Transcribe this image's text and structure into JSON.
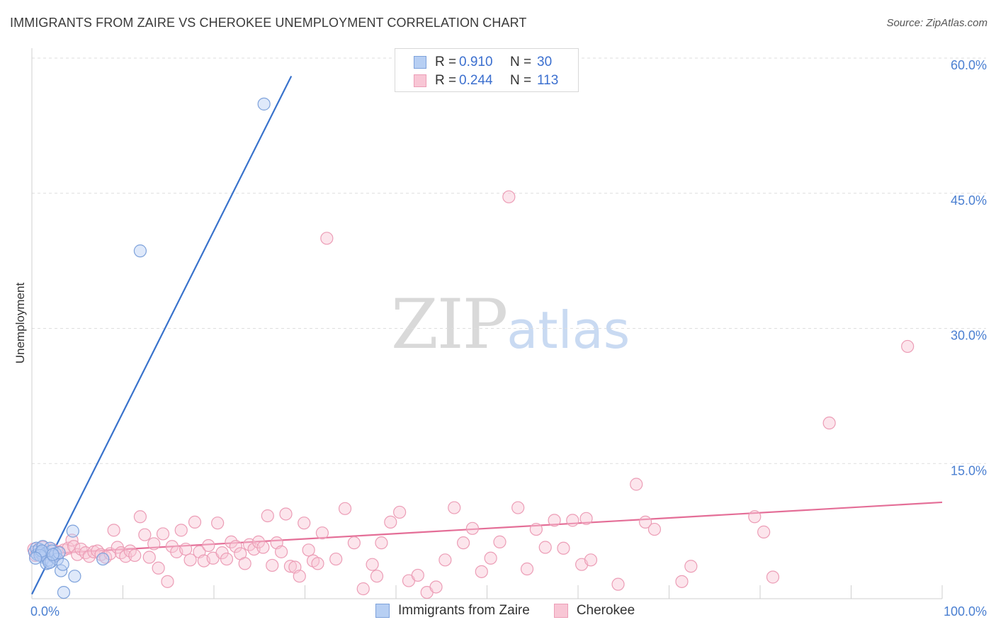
{
  "title": "IMMIGRANTS FROM ZAIRE VS CHEROKEE UNEMPLOYMENT CORRELATION CHART",
  "source": "Source: ZipAtlas.com",
  "watermark": {
    "zip": "ZIP",
    "atlas": "atlas"
  },
  "colors": {
    "blue_fill": "#b7cff3",
    "blue_stroke": "#7ea2db",
    "blue_line": "#3872cc",
    "pink_fill": "#f8c6d5",
    "pink_stroke": "#ec9db6",
    "pink_line": "#e46e97",
    "grid": "#dedede",
    "tick_text": "#4a7fd1"
  },
  "legend": {
    "rows": [
      {
        "r_label": "R =",
        "r_value": "0.910",
        "n_label": "N =",
        "n_value": "30"
      },
      {
        "r_label": "R =",
        "r_value": "0.244",
        "n_label": "N =",
        "n_value": "113"
      }
    ]
  },
  "chart_data": {
    "type": "scatter",
    "title": "IMMIGRANTS FROM ZAIRE VS CHEROKEE UNEMPLOYMENT CORRELATION CHART",
    "xlabel": "",
    "ylabel": "Unemployment",
    "xlim": [
      0,
      100
    ],
    "ylim": [
      0,
      60
    ],
    "x_tick_labels": [
      "0.0%",
      "100.0%"
    ],
    "y_ticks": [
      15,
      30,
      45,
      60
    ],
    "y_tick_labels": [
      "15.0%",
      "30.0%",
      "45.0%",
      "60.0%"
    ],
    "grid": true,
    "legend_position": "bottom",
    "series": [
      {
        "name": "Immigrants from Zaire",
        "r": 0.91,
        "n": 30,
        "trend": {
          "x": [
            0,
            28.5
          ],
          "y": [
            0.5,
            58.0
          ]
        },
        "points": [
          [
            0.3,
            5.2
          ],
          [
            0.5,
            5.6
          ],
          [
            0.6,
            4.9
          ],
          [
            0.8,
            5.5
          ],
          [
            1.0,
            5.1
          ],
          [
            1.2,
            5.8
          ],
          [
            1.3,
            4.6
          ],
          [
            1.5,
            5.0
          ],
          [
            1.6,
            3.9
          ],
          [
            1.8,
            4.3
          ],
          [
            2.0,
            5.6
          ],
          [
            2.1,
            4.1
          ],
          [
            2.2,
            5.3
          ],
          [
            2.4,
            4.7
          ],
          [
            2.6,
            5.0
          ],
          [
            2.8,
            4.4
          ],
          [
            3.0,
            5.1
          ],
          [
            3.2,
            3.1
          ],
          [
            3.4,
            3.8
          ],
          [
            3.5,
            0.7
          ],
          [
            4.5,
            7.5
          ],
          [
            4.7,
            2.5
          ],
          [
            7.8,
            4.4
          ],
          [
            11.9,
            38.6
          ],
          [
            25.5,
            54.9
          ],
          [
            0.9,
            4.8
          ],
          [
            1.1,
            5.3
          ],
          [
            1.9,
            4.0
          ],
          [
            2.3,
            4.9
          ],
          [
            0.4,
            4.5
          ]
        ]
      },
      {
        "name": "Cherokee",
        "r": 0.244,
        "n": 113,
        "trend": {
          "x": [
            0,
            100
          ],
          "y": [
            4.9,
            10.7
          ]
        },
        "points": [
          [
            0.2,
            5.5
          ],
          [
            0.4,
            4.8
          ],
          [
            0.6,
            5.3
          ],
          [
            0.9,
            5.0
          ],
          [
            1.2,
            5.7
          ],
          [
            1.5,
            4.9
          ],
          [
            1.8,
            5.2
          ],
          [
            2.2,
            5.5
          ],
          [
            2.6,
            4.8
          ],
          [
            3.0,
            5.2
          ],
          [
            3.5,
            5.4
          ],
          [
            4.0,
            5.6
          ],
          [
            4.4,
            6.5
          ],
          [
            4.6,
            5.8
          ],
          [
            5.0,
            4.9
          ],
          [
            5.4,
            5.5
          ],
          [
            5.9,
            5.1
          ],
          [
            6.3,
            4.7
          ],
          [
            6.8,
            5.2
          ],
          [
            7.2,
            5.3
          ],
          [
            7.6,
            4.9
          ],
          [
            8.1,
            4.6
          ],
          [
            8.6,
            5.0
          ],
          [
            9.0,
            7.6
          ],
          [
            9.4,
            5.7
          ],
          [
            9.8,
            5.1
          ],
          [
            10.3,
            4.7
          ],
          [
            10.8,
            5.3
          ],
          [
            11.3,
            4.8
          ],
          [
            11.9,
            9.1
          ],
          [
            12.4,
            7.1
          ],
          [
            12.9,
            4.6
          ],
          [
            13.4,
            6.1
          ],
          [
            13.9,
            3.4
          ],
          [
            14.4,
            7.2
          ],
          [
            14.9,
            1.9
          ],
          [
            15.4,
            5.8
          ],
          [
            15.9,
            5.2
          ],
          [
            16.4,
            7.6
          ],
          [
            16.9,
            5.5
          ],
          [
            17.4,
            4.3
          ],
          [
            17.9,
            8.5
          ],
          [
            18.4,
            5.2
          ],
          [
            18.9,
            4.2
          ],
          [
            19.4,
            5.9
          ],
          [
            19.9,
            4.5
          ],
          [
            20.4,
            8.4
          ],
          [
            20.9,
            5.1
          ],
          [
            21.4,
            4.4
          ],
          [
            21.9,
            6.3
          ],
          [
            22.4,
            5.8
          ],
          [
            22.9,
            5.0
          ],
          [
            23.4,
            3.9
          ],
          [
            23.9,
            6.0
          ],
          [
            24.4,
            5.5
          ],
          [
            24.9,
            6.3
          ],
          [
            25.4,
            5.7
          ],
          [
            25.9,
            9.2
          ],
          [
            26.4,
            3.7
          ],
          [
            26.9,
            6.2
          ],
          [
            27.4,
            5.2
          ],
          [
            27.9,
            9.4
          ],
          [
            28.4,
            3.6
          ],
          [
            28.9,
            3.5
          ],
          [
            29.4,
            2.5
          ],
          [
            29.9,
            8.4
          ],
          [
            30.4,
            5.4
          ],
          [
            30.9,
            4.2
          ],
          [
            31.4,
            3.9
          ],
          [
            31.9,
            7.3
          ],
          [
            32.4,
            40.0
          ],
          [
            33.4,
            4.4
          ],
          [
            34.4,
            10.0
          ],
          [
            35.4,
            6.2
          ],
          [
            36.4,
            1.1
          ],
          [
            37.4,
            3.8
          ],
          [
            37.9,
            2.5
          ],
          [
            38.4,
            6.2
          ],
          [
            39.4,
            8.5
          ],
          [
            40.4,
            9.6
          ],
          [
            41.4,
            2.0
          ],
          [
            42.4,
            2.6
          ],
          [
            43.4,
            0.7
          ],
          [
            44.4,
            1.3
          ],
          [
            45.4,
            4.3
          ],
          [
            46.4,
            10.1
          ],
          [
            47.4,
            6.2
          ],
          [
            48.4,
            7.8
          ],
          [
            49.4,
            3.0
          ],
          [
            50.4,
            4.5
          ],
          [
            51.4,
            6.3
          ],
          [
            52.4,
            44.6
          ],
          [
            53.4,
            10.1
          ],
          [
            54.4,
            3.3
          ],
          [
            55.4,
            7.7
          ],
          [
            56.4,
            5.7
          ],
          [
            57.4,
            8.7
          ],
          [
            58.4,
            5.6
          ],
          [
            59.4,
            8.7
          ],
          [
            60.4,
            3.8
          ],
          [
            61.4,
            4.3
          ],
          [
            64.4,
            1.6
          ],
          [
            66.4,
            12.7
          ],
          [
            67.4,
            8.5
          ],
          [
            68.4,
            7.7
          ],
          [
            71.4,
            1.9
          ],
          [
            72.4,
            3.6
          ],
          [
            79.4,
            9.1
          ],
          [
            80.4,
            7.4
          ],
          [
            81.4,
            2.4
          ],
          [
            87.6,
            19.5
          ],
          [
            96.2,
            28.0
          ],
          [
            60.9,
            8.9
          ]
        ]
      }
    ]
  }
}
